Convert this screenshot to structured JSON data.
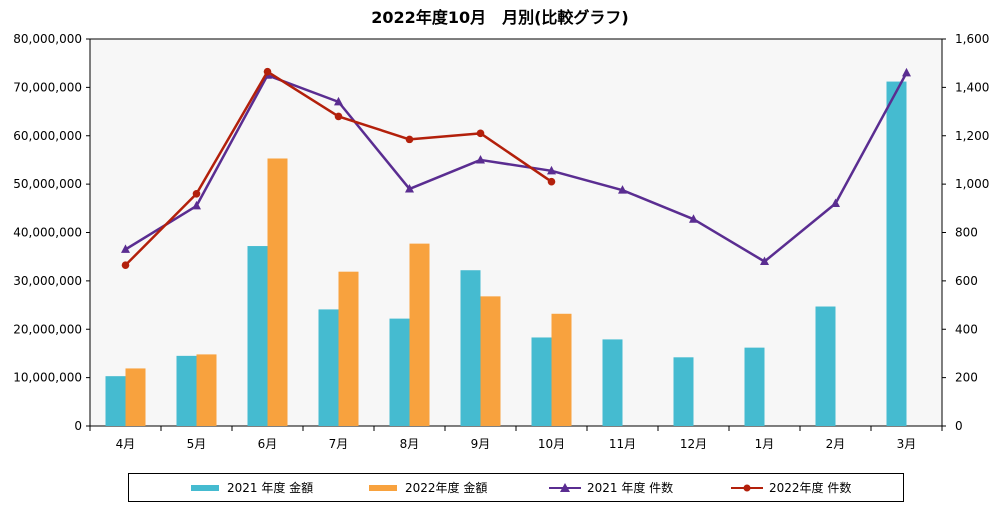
{
  "chart_data": {
    "type": "bar",
    "title": "2022年度10月　月別(比較グラフ)",
    "categories": [
      "4月",
      "5月",
      "6月",
      "7月",
      "8月",
      "9月",
      "10月",
      "11月",
      "12月",
      "1月",
      "2月",
      "3月"
    ],
    "y_left": {
      "ylim": [
        0,
        80000000
      ],
      "ticks": [
        "0",
        "10,000,000",
        "20,000,000",
        "30,000,000",
        "40,000,000",
        "50,000,000",
        "60,000,000",
        "70,000,000",
        "80,000,000"
      ]
    },
    "y_right": {
      "ylim": [
        0,
        1600
      ],
      "ticks": [
        "0",
        "200",
        "400",
        "600",
        "800",
        "1,000",
        "1,200",
        "1,400",
        "1,600"
      ]
    },
    "grid": false,
    "legend_position": "bottom",
    "series": [
      {
        "name": "2021 年度 金額",
        "kind": "bar",
        "axis": "left",
        "color": "#45bbd0",
        "values": [
          10300000,
          14500000,
          37200000,
          24100000,
          22200000,
          32200000,
          18300000,
          17900000,
          14200000,
          16200000,
          24700000,
          71200000
        ]
      },
      {
        "name": "2022年度 金額",
        "kind": "bar",
        "axis": "left",
        "color": "#f8a23e",
        "values": [
          11900000,
          14800000,
          55300000,
          31900000,
          37700000,
          26800000,
          23200000,
          null,
          null,
          null,
          null,
          null
        ]
      },
      {
        "name": "2021 年度 件数",
        "kind": "line",
        "axis": "right",
        "color": "#5a2d91",
        "marker": "triangle",
        "values": [
          730,
          910,
          1450,
          1340,
          980,
          1100,
          1055,
          975,
          855,
          680,
          920,
          1460
        ]
      },
      {
        "name": "2022年度 件数",
        "kind": "line",
        "axis": "right",
        "color": "#b3200b",
        "marker": "circle",
        "values": [
          665,
          960,
          1465,
          1280,
          1185,
          1210,
          1010,
          null,
          null,
          null,
          null,
          null
        ]
      }
    ]
  }
}
